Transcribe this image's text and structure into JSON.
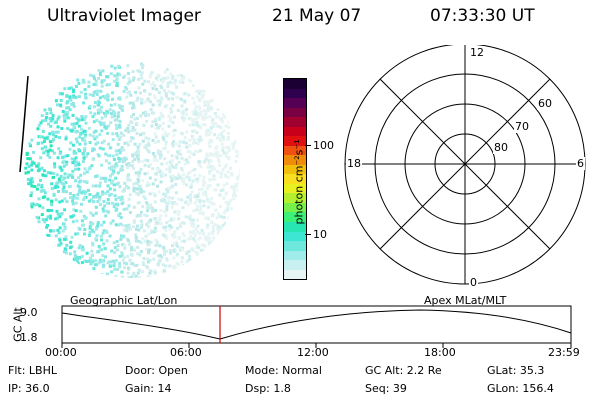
{
  "header": {
    "title": "Ultraviolet Imager",
    "date": "21 May 07",
    "time": "07:33:30 UT"
  },
  "colorbar": {
    "unit_label": "photon cm⁻²s⁻¹",
    "ticks": [
      "100",
      "10"
    ],
    "colors_top_to_bottom": [
      "#1a0033",
      "#2e004d",
      "#550055",
      "#7a0044",
      "#a00030",
      "#c8001a",
      "#e01010",
      "#f05010",
      "#f08c0a",
      "#f0c00a",
      "#f8e020",
      "#e8f020",
      "#b4f030",
      "#78f04c",
      "#3cf078",
      "#28e6b4",
      "#3ce6d2",
      "#6ee8dc",
      "#a0ecea",
      "#c8f0f0",
      "#e6f4f4"
    ]
  },
  "polar": {
    "mlt_labels": {
      "top": "12",
      "left": "18",
      "right": "6",
      "bottom": "0"
    },
    "lat_labels": [
      "60",
      "70",
      "80"
    ]
  },
  "timeline": {
    "left_title": "Geographic Lat/Lon",
    "right_title": "Apex MLat/MLT",
    "axis_label": "GC Alt",
    "y_ticks": [
      "9.0",
      "1.8"
    ],
    "x_ticks": [
      "00:00",
      "06:00",
      "12:00",
      "18:00",
      "23:59"
    ],
    "marker_color": "#cc0000"
  },
  "info": {
    "row1": [
      "Flt: LBHL",
      "Door: Open",
      "Mode: Normal",
      "GC Alt: 2.2 Re",
      "GLat:  35.3"
    ],
    "row2": [
      "IP: 36.0",
      "Gain: 14",
      "Dsp:    1.8",
      "Seq: 39",
      "GLon: 156.4"
    ]
  }
}
